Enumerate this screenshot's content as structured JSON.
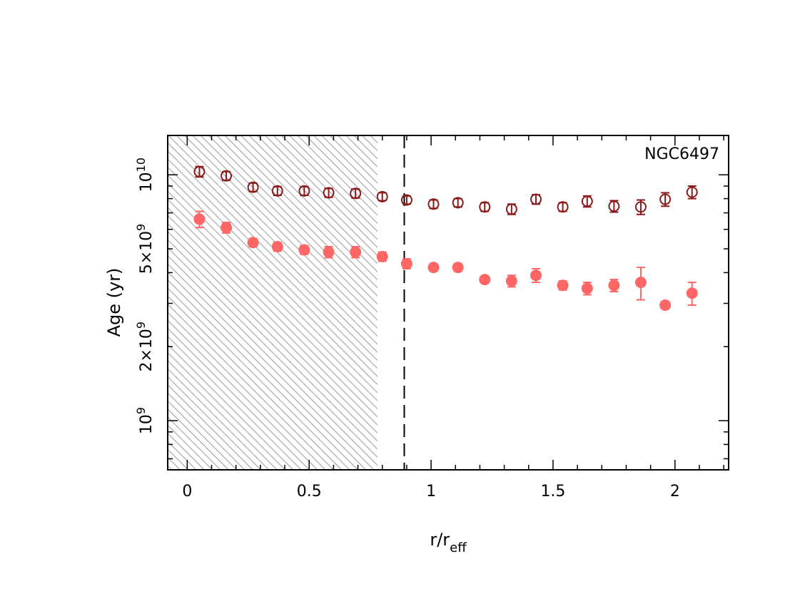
{
  "chart_data": {
    "type": "scatter",
    "annotation": "NGC6497",
    "xlabel": {
      "main": "r/r",
      "sub": "eff"
    },
    "ylabel": "Age (yr)",
    "xlim": [
      -0.08,
      2.22
    ],
    "ylim_log10": [
      8.8,
      10.16
    ],
    "yscale": "log",
    "x_ticks": [
      {
        "value": 0,
        "label": "0"
      },
      {
        "value": 0.5,
        "label": "0.5"
      },
      {
        "value": 1,
        "label": "1"
      },
      {
        "value": 1.5,
        "label": "1.5"
      },
      {
        "value": 2,
        "label": "2"
      }
    ],
    "y_tick_labels": [
      {
        "value": 1000000000.0,
        "base": "10",
        "exp": "9",
        "mantissa": ""
      },
      {
        "value": 2000000000.0,
        "mantissa": "2×",
        "base": "10",
        "exp": "9"
      },
      {
        "value": 5000000000.0,
        "mantissa": "5×",
        "base": "10",
        "exp": "9"
      },
      {
        "value": 10000000000.0,
        "base": "10",
        "exp": "10",
        "mantissa": ""
      }
    ],
    "shaded_region": {
      "x_from": -0.08,
      "x_to": 0.78,
      "color": "#999999"
    },
    "vertical_line": {
      "x": 0.89,
      "style": "dashed"
    },
    "series": [
      {
        "marker": "open-circle",
        "color": "#8b1a1a",
        "points": [
          {
            "x": 0.05,
            "y": 10300000000.0,
            "err": 500000000.0
          },
          {
            "x": 0.16,
            "y": 9900000000.0,
            "err": 400000000.0
          },
          {
            "x": 0.27,
            "y": 8900000000.0,
            "err": 350000000.0
          },
          {
            "x": 0.37,
            "y": 8600000000.0,
            "err": 350000000.0
          },
          {
            "x": 0.48,
            "y": 8600000000.0,
            "err": 350000000.0
          },
          {
            "x": 0.58,
            "y": 8450000000.0,
            "err": 350000000.0
          },
          {
            "x": 0.69,
            "y": 8400000000.0,
            "err": 350000000.0
          },
          {
            "x": 0.8,
            "y": 8150000000.0,
            "err": 300000000.0
          },
          {
            "x": 0.9,
            "y": 7900000000.0,
            "err": 300000000.0
          },
          {
            "x": 1.01,
            "y": 7600000000.0,
            "err": 300000000.0
          },
          {
            "x": 1.11,
            "y": 7700000000.0,
            "err": 300000000.0
          },
          {
            "x": 1.22,
            "y": 7400000000.0,
            "err": 300000000.0
          },
          {
            "x": 1.33,
            "y": 7250000000.0,
            "err": 350000000.0
          },
          {
            "x": 1.43,
            "y": 7950000000.0,
            "err": 350000000.0
          },
          {
            "x": 1.54,
            "y": 7400000000.0,
            "err": 300000000.0
          },
          {
            "x": 1.64,
            "y": 7800000000.0,
            "err": 400000000.0
          },
          {
            "x": 1.75,
            "y": 7450000000.0,
            "err": 400000000.0
          },
          {
            "x": 1.86,
            "y": 7400000000.0,
            "err": 500000000.0
          },
          {
            "x": 1.96,
            "y": 7950000000.0,
            "err": 500000000.0
          },
          {
            "x": 2.07,
            "y": 8500000000.0,
            "err": 500000000.0
          }
        ]
      },
      {
        "marker": "filled-circle",
        "color": "#ff6666",
        "points": [
          {
            "x": 0.05,
            "y": 6600000000.0,
            "err": 500000000.0
          },
          {
            "x": 0.16,
            "y": 6100000000.0,
            "err": 300000000.0
          },
          {
            "x": 0.27,
            "y": 5300000000.0,
            "err": 200000000.0
          },
          {
            "x": 0.37,
            "y": 5100000000.0,
            "err": 200000000.0
          },
          {
            "x": 0.48,
            "y": 4950000000.0,
            "err": 200000000.0
          },
          {
            "x": 0.58,
            "y": 4850000000.0,
            "err": 250000000.0
          },
          {
            "x": 0.69,
            "y": 4850000000.0,
            "err": 250000000.0
          },
          {
            "x": 0.8,
            "y": 4650000000.0,
            "err": 200000000.0
          },
          {
            "x": 0.9,
            "y": 4350000000.0,
            "err": 200000000.0
          },
          {
            "x": 1.01,
            "y": 4200000000.0,
            "err": 150000000.0
          },
          {
            "x": 1.11,
            "y": 4200000000.0,
            "err": 150000000.0
          },
          {
            "x": 1.22,
            "y": 3750000000.0,
            "err": 120000000.0
          },
          {
            "x": 1.33,
            "y": 3700000000.0,
            "err": 200000000.0
          },
          {
            "x": 1.43,
            "y": 3900000000.0,
            "err": 250000000.0
          },
          {
            "x": 1.54,
            "y": 3550000000.0,
            "err": 150000000.0
          },
          {
            "x": 1.64,
            "y": 3450000000.0,
            "err": 200000000.0
          },
          {
            "x": 1.75,
            "y": 3550000000.0,
            "err": 200000000.0
          },
          {
            "x": 1.86,
            "y": 3650000000.0,
            "err": 550000000.0
          },
          {
            "x": 1.96,
            "y": 2950000000.0,
            "err": 100000000.0
          },
          {
            "x": 2.07,
            "y": 3300000000.0,
            "err": 350000000.0
          }
        ]
      }
    ]
  }
}
